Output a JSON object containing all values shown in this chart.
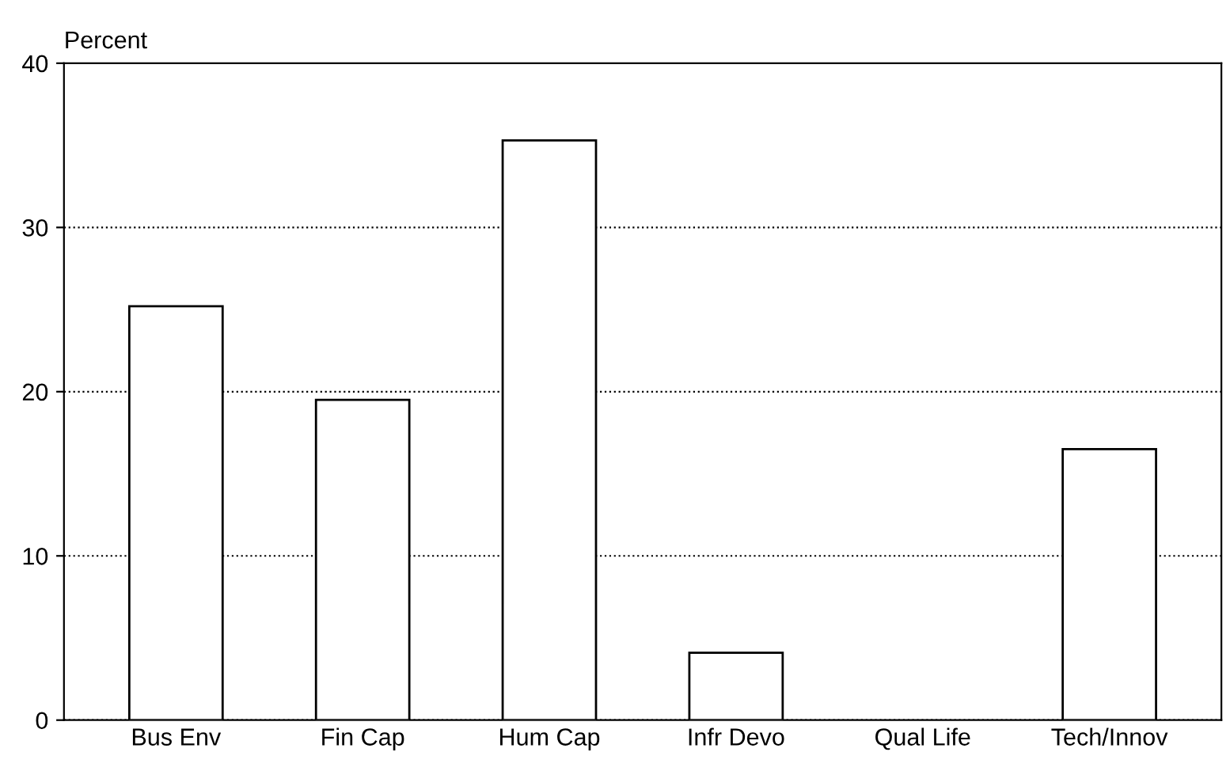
{
  "chart_data": {
    "type": "bar",
    "ylabel": "Percent",
    "categories": [
      "Bus Env",
      "Fin Cap",
      "Hum Cap",
      "Infr Devo",
      "Qual Life",
      "Tech/Innov"
    ],
    "values": [
      25.2,
      19.5,
      35.3,
      4.1,
      null,
      16.5
    ],
    "color": "#ffffff",
    "ylim": [
      0,
      40
    ],
    "yticks": [
      0,
      10,
      20,
      30,
      40
    ],
    "grid": "y"
  }
}
